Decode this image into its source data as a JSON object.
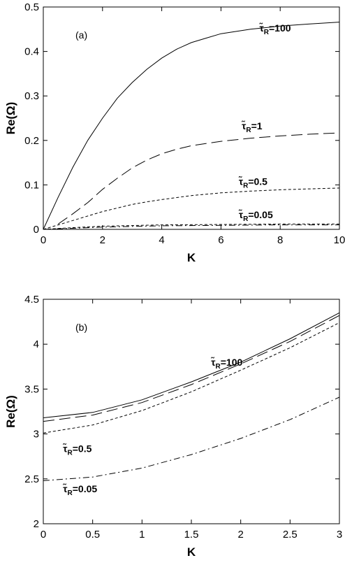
{
  "chart_data": [
    {
      "type": "line",
      "panel_label": "(a)",
      "xlabel": "K",
      "ylabel": "Re(Ω)",
      "xlim": [
        0,
        10
      ],
      "ylim": [
        0,
        0.5
      ],
      "xticks": [
        "0",
        "2",
        "4",
        "6",
        "8",
        "10"
      ],
      "yticks": [
        "0",
        "0.1",
        "0.2",
        "0.3",
        "0.4",
        "0.5"
      ],
      "grid": false,
      "series": [
        {
          "name": "τ̃R=100",
          "style": "solid",
          "x": [
            0,
            0.5,
            1,
            1.5,
            2,
            2.5,
            3,
            3.5,
            4,
            4.5,
            5,
            5.5,
            6,
            7,
            8,
            9,
            10
          ],
          "y": [
            0,
            0.072,
            0.14,
            0.2,
            0.25,
            0.295,
            0.33,
            0.36,
            0.385,
            0.405,
            0.42,
            0.43,
            0.44,
            0.45,
            0.457,
            0.462,
            0.466
          ]
        },
        {
          "name": "τ̃R=1",
          "style": "dashed",
          "x": [
            0.5,
            1,
            1.5,
            2,
            2.5,
            3,
            3.5,
            4,
            4.5,
            5,
            6,
            7,
            8,
            9,
            10
          ],
          "y": [
            0.012,
            0.035,
            0.06,
            0.09,
            0.115,
            0.138,
            0.156,
            0.17,
            0.18,
            0.188,
            0.198,
            0.205,
            0.21,
            0.214,
            0.217
          ]
        },
        {
          "name": "τ̃R=0.5",
          "style": "dotted",
          "x": [
            0,
            1,
            2,
            3,
            3.5,
            4,
            5,
            6,
            7,
            8,
            9,
            10
          ],
          "y": [
            0,
            0.02,
            0.04,
            0.056,
            0.062,
            0.067,
            0.076,
            0.082,
            0.086,
            0.089,
            0.091,
            0.093
          ]
        },
        {
          "name": "τ̃R=0.05",
          "style": "dotted",
          "x": [
            0,
            1,
            2,
            4,
            6,
            8,
            10
          ],
          "y": [
            0,
            0.004,
            0.007,
            0.01,
            0.011,
            0.012,
            0.012
          ]
        },
        {
          "style": "dashdot",
          "x": [
            0,
            2,
            4,
            6,
            8,
            10
          ],
          "y": [
            0,
            0.005,
            0.008,
            0.009,
            0.01,
            0.01
          ]
        }
      ],
      "annotations": [
        {
          "text": "τ̃R=100",
          "x": 7.3,
          "y": 0.445
        },
        {
          "text": "τ̃R=1",
          "x": 6.7,
          "y": 0.225
        },
        {
          "text": "τ̃R=0.5",
          "x": 6.6,
          "y": 0.1
        },
        {
          "text": "τ̃R=0.05",
          "x": 6.6,
          "y": 0.025
        }
      ]
    },
    {
      "type": "line",
      "panel_label": "(b)",
      "xlabel": "K",
      "ylabel": "Re(Ω)",
      "xlim": [
        0,
        3
      ],
      "ylim": [
        2,
        4.5
      ],
      "xticks": [
        "0",
        "0.5",
        "1",
        "1.5",
        "2",
        "2.5",
        "3"
      ],
      "yticks": [
        "2",
        "2.5",
        "3",
        "3.5",
        "4",
        "4.5"
      ],
      "grid": false,
      "series": [
        {
          "name": "τ̃R=100",
          "style": "solid",
          "x": [
            0,
            0.5,
            1,
            1.5,
            2,
            2.5,
            3
          ],
          "y": [
            3.18,
            3.24,
            3.38,
            3.58,
            3.8,
            4.06,
            4.35
          ]
        },
        {
          "style": "dashed",
          "x": [
            0,
            0.5,
            1,
            1.5,
            2,
            2.5,
            3
          ],
          "y": [
            3.14,
            3.21,
            3.35,
            3.55,
            3.78,
            4.03,
            4.32
          ]
        },
        {
          "name": "τ̃R=0.5",
          "style": "dotted",
          "x": [
            0,
            0.5,
            1,
            1.5,
            2,
            2.5,
            3
          ],
          "y": [
            3.01,
            3.1,
            3.26,
            3.47,
            3.71,
            3.96,
            4.24
          ]
        },
        {
          "name": "τ̃R=0.05",
          "style": "dashdot",
          "x": [
            0,
            0.5,
            1,
            1.5,
            2,
            2.5,
            3
          ],
          "y": [
            2.48,
            2.52,
            2.62,
            2.77,
            2.95,
            3.16,
            3.41
          ]
        }
      ],
      "annotations": [
        {
          "text": "τ̃R=100",
          "x": 1.7,
          "y": 3.76
        },
        {
          "text": "τ̃R=0.5",
          "x": 0.2,
          "y": 2.8
        },
        {
          "text": "τ̃R=0.05",
          "x": 0.2,
          "y": 2.35
        }
      ]
    }
  ]
}
